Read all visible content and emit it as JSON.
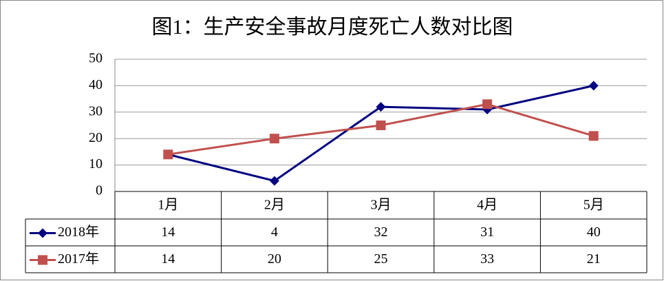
{
  "chart_data": {
    "type": "line",
    "title": "图1：生产安全事故月度死亡人数对比图",
    "categories": [
      "1月",
      "2月",
      "3月",
      "4月",
      "5月"
    ],
    "series": [
      {
        "name": "2018年",
        "color": "#000080",
        "marker": "diamond",
        "values": [
          14,
          4,
          32,
          31,
          40
        ]
      },
      {
        "name": "2017年",
        "color": "#c0504d",
        "marker": "square",
        "values": [
          14,
          20,
          25,
          33,
          21
        ]
      }
    ],
    "ylim": [
      0,
      50
    ],
    "yticks": [
      0,
      10,
      20,
      30,
      40,
      50
    ],
    "grid": true,
    "data_table": true
  }
}
